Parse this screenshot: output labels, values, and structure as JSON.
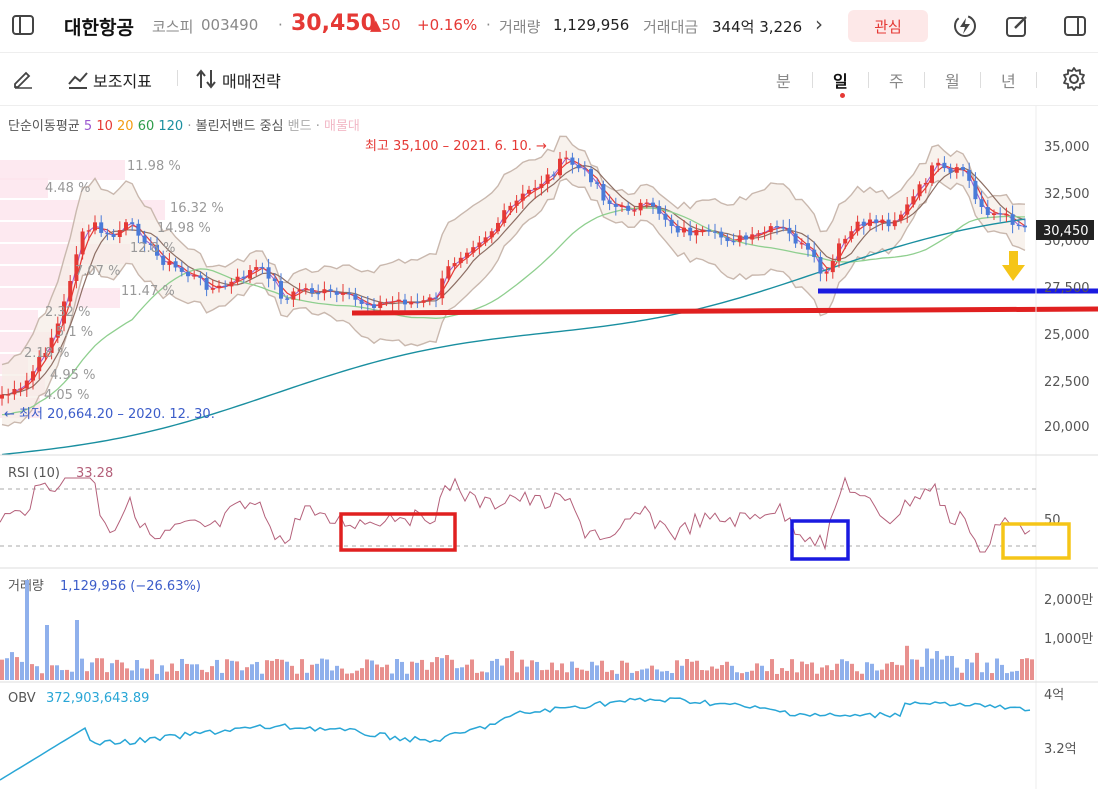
{
  "header": {
    "name": "대한항공",
    "market": "코스피",
    "code": "003490",
    "dot": "·",
    "price": "30,450",
    "change": "▲50",
    "change_pct": "+0.16%",
    "volume_label": "거래량",
    "volume": "1,129,956",
    "amount_label": "거래대금",
    "amount": "344억 3,226",
    "more": "›",
    "favorite": "관심"
  },
  "toolbar": {
    "indicator": "보조지표",
    "strategy": "매매전략",
    "periods": [
      "분",
      "일",
      "주",
      "월",
      "년"
    ],
    "active_period": "일"
  },
  "legend": {
    "ma_title": "단순이동평균",
    "ma": [
      {
        "label": "5",
        "color": "#9b59d0"
      },
      {
        "label": "10",
        "color": "#e53935"
      },
      {
        "label": "20",
        "color": "#f39c12"
      },
      {
        "label": "60",
        "color": "#2e9c4a"
      },
      {
        "label": "120",
        "color": "#1a8fa0"
      }
    ],
    "bb_title": "볼린저밴드 중심",
    "bb_band": "밴드",
    "bb_extra": "매물대",
    "dot": "·"
  },
  "annotations": {
    "high": "최고 35,100 – 2021. 6. 10. →",
    "low": "← 최저 20,664.20 – 2020. 12. 30.",
    "profile_pcts": [
      "11.98 %",
      "4.48 %",
      "16.32 %",
      "14.98 %",
      "12.8 %",
      "7.07 %",
      "11.47 %",
      "2.32 %",
      "5.1 %",
      "2.18 %",
      "4.95 %",
      "4.05 %"
    ]
  },
  "price_axis": {
    "ticks": [
      "35,000",
      "32,500",
      "30,000",
      "27,500",
      "25,000",
      "22,500",
      "20,000"
    ],
    "current": "30,450"
  },
  "rsi": {
    "label": "RSI (10)",
    "value": "33.28",
    "mid_tick": "50"
  },
  "volume": {
    "label": "거래량",
    "value": "1,129,956 (−26.63%)",
    "ticks": [
      "2,000만",
      "1,000만"
    ]
  },
  "obv": {
    "label": "OBV",
    "value": "372,903,643.89",
    "ticks": [
      "4억",
      "3.2억"
    ]
  },
  "colors": {
    "up": "#e53935",
    "down": "#4a7bd8",
    "accent_red": "#e02020",
    "accent_blue": "#1a1ae0",
    "accent_yellow": "#f5c518",
    "obv_line": "#29a6d6",
    "rsi_line": "#b4607a"
  },
  "icons": [
    "sidebar-toggle-icon",
    "flash-icon",
    "edit-icon",
    "panel-icon",
    "pencil-icon",
    "indicator-icon",
    "strategy-icon",
    "settings-icon",
    "arrow-down-icon"
  ]
}
